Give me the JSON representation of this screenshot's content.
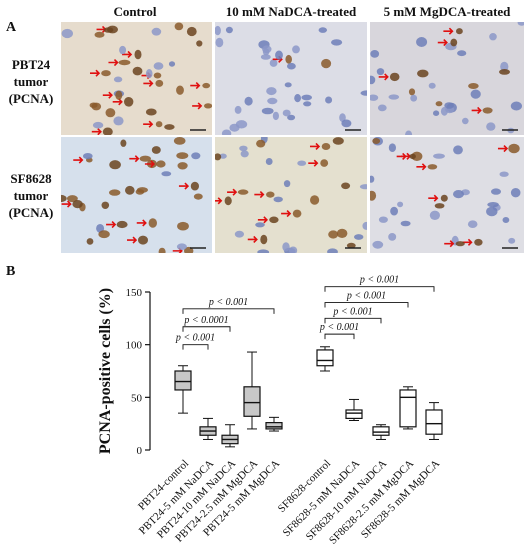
{
  "panel_a": {
    "label": "A",
    "columns": [
      "Control",
      "10 mM NaDCA-treated",
      "5 mM MgDCA-treated"
    ],
    "rows": [
      {
        "line1": "PBT24",
        "line2": "tumor",
        "line3": "(PCNA)"
      },
      {
        "line1": "SF8628",
        "line2": "tumor",
        "line3": "(PCNA)"
      }
    ]
  },
  "panel_b": {
    "label": "B"
  },
  "chart_data": {
    "type": "box",
    "ylabel": "PCNA-positive cells (%)",
    "ylim": [
      0,
      150
    ],
    "yticks": [
      0,
      50,
      100,
      150
    ],
    "categories": [
      "PBT24-control",
      "PBT24-5 mM NaDCA",
      "PBT24-10 mM NaDCA",
      "PBT24-2.5 mM MgDCA",
      "PBT24-5 mM MgDCA",
      "SF8628-control",
      "SF8628-5 mM NaDCA",
      "SF8628-10 mM NaDCA",
      "SF8628-2.5 mM MgDCA",
      "SF8628-5 mM MgDCA"
    ],
    "boxes": [
      {
        "min": 35,
        "q1": 57,
        "median": 65,
        "q3": 75,
        "max": 80,
        "fill": "#c8c8c8"
      },
      {
        "min": 10,
        "q1": 14,
        "median": 18,
        "q3": 22,
        "max": 30,
        "fill": "#c8c8c8"
      },
      {
        "min": 3,
        "q1": 6,
        "median": 10,
        "q3": 14,
        "max": 24,
        "fill": "#c8c8c8"
      },
      {
        "min": 20,
        "q1": 32,
        "median": 45,
        "q3": 60,
        "max": 93,
        "fill": "#c8c8c8"
      },
      {
        "min": 18,
        "q1": 20,
        "median": 22,
        "q3": 26,
        "max": 31,
        "fill": "#c8c8c8"
      },
      {
        "min": 75,
        "q1": 80,
        "median": 85,
        "q3": 95,
        "max": 98,
        "fill": "#ffffff"
      },
      {
        "min": 28,
        "q1": 30,
        "median": 35,
        "q3": 38,
        "max": 48,
        "fill": "#ffffff"
      },
      {
        "min": 10,
        "q1": 14,
        "median": 17,
        "q3": 22,
        "max": 24,
        "fill": "#ffffff"
      },
      {
        "min": 20,
        "q1": 22,
        "median": 50,
        "q3": 57,
        "max": 60,
        "fill": "#ffffff"
      },
      {
        "min": 10,
        "q1": 15,
        "median": 25,
        "q3": 38,
        "max": 45,
        "fill": "#ffffff"
      }
    ],
    "comparisons": [
      {
        "from": 0,
        "to": 1,
        "level": 100,
        "label": "p < 0.001"
      },
      {
        "from": 0,
        "to": 2,
        "level": 117,
        "label": "p < 0.0001"
      },
      {
        "from": 0,
        "to": 4,
        "level": 134,
        "label": "p < 0.001"
      },
      {
        "from": 5,
        "to": 6,
        "level": 110,
        "label": "p < 0.001"
      },
      {
        "from": 5,
        "to": 7,
        "level": 125,
        "label": "p < 0.001"
      },
      {
        "from": 5,
        "to": 8,
        "level": 140,
        "label": "p < 0.001"
      },
      {
        "from": 5,
        "to": 9,
        "level": 155,
        "label": "p < 0.001"
      }
    ]
  }
}
